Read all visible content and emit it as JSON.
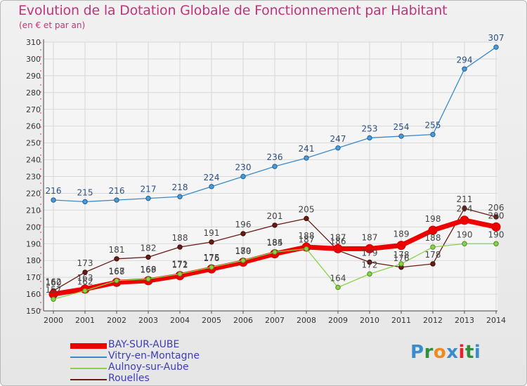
{
  "title": "Evolution de la Dotation Globale de Fonctionnement par Habitant",
  "subtitle": "(en € et par an)",
  "brand": {
    "text": "Proxiti",
    "colors": [
      "#3a8ccc",
      "#2f8f3f",
      "#f08a1c",
      "#3a8ccc",
      "#e7212b",
      "#2f8f3f",
      "#3a8ccc"
    ]
  },
  "chart_data": {
    "type": "line",
    "title": "Evolution de la Dotation Globale de Fonctionnement par Habitant",
    "ylabel": "(en € et par an)",
    "xlabel": "",
    "ylim": [
      150,
      310
    ],
    "y_ticks": [
      150,
      160,
      170,
      180,
      190,
      200,
      210,
      220,
      230,
      240,
      250,
      260,
      270,
      280,
      290,
      300,
      310
    ],
    "x": [
      2000,
      2001,
      2002,
      2003,
      2004,
      2005,
      2006,
      2007,
      2008,
      2009,
      2010,
      2011,
      2012,
      2013,
      2014
    ],
    "grid": true,
    "legend_position": "bottom-left",
    "series": [
      {
        "name": "BAY-SUR-AUBE",
        "color": "#ee0000",
        "values": [
          160,
          163,
          167,
          168,
          171,
          175,
          179,
          184,
          188,
          187,
          187,
          189,
          198,
          204,
          200
        ]
      },
      {
        "name": "Vitry-en-Montagne",
        "color": "#3a8acb",
        "values": [
          216,
          215,
          216,
          217,
          218,
          224,
          230,
          236,
          241,
          247,
          253,
          254,
          255,
          294,
          307
        ]
      },
      {
        "name": "Aulnoy-sur-Aube",
        "color": "#8ad24a",
        "values": [
          157,
          162,
          168,
          169,
          172,
          176,
          180,
          185,
          187,
          164,
          172,
          178,
          188,
          190,
          190
        ]
      },
      {
        "name": "Rouelles",
        "color": "#6b1a14",
        "values": [
          162,
          173,
          181,
          182,
          188,
          191,
          196,
          201,
          205,
          186,
          179,
          176,
          178,
          211,
          206
        ]
      }
    ]
  }
}
